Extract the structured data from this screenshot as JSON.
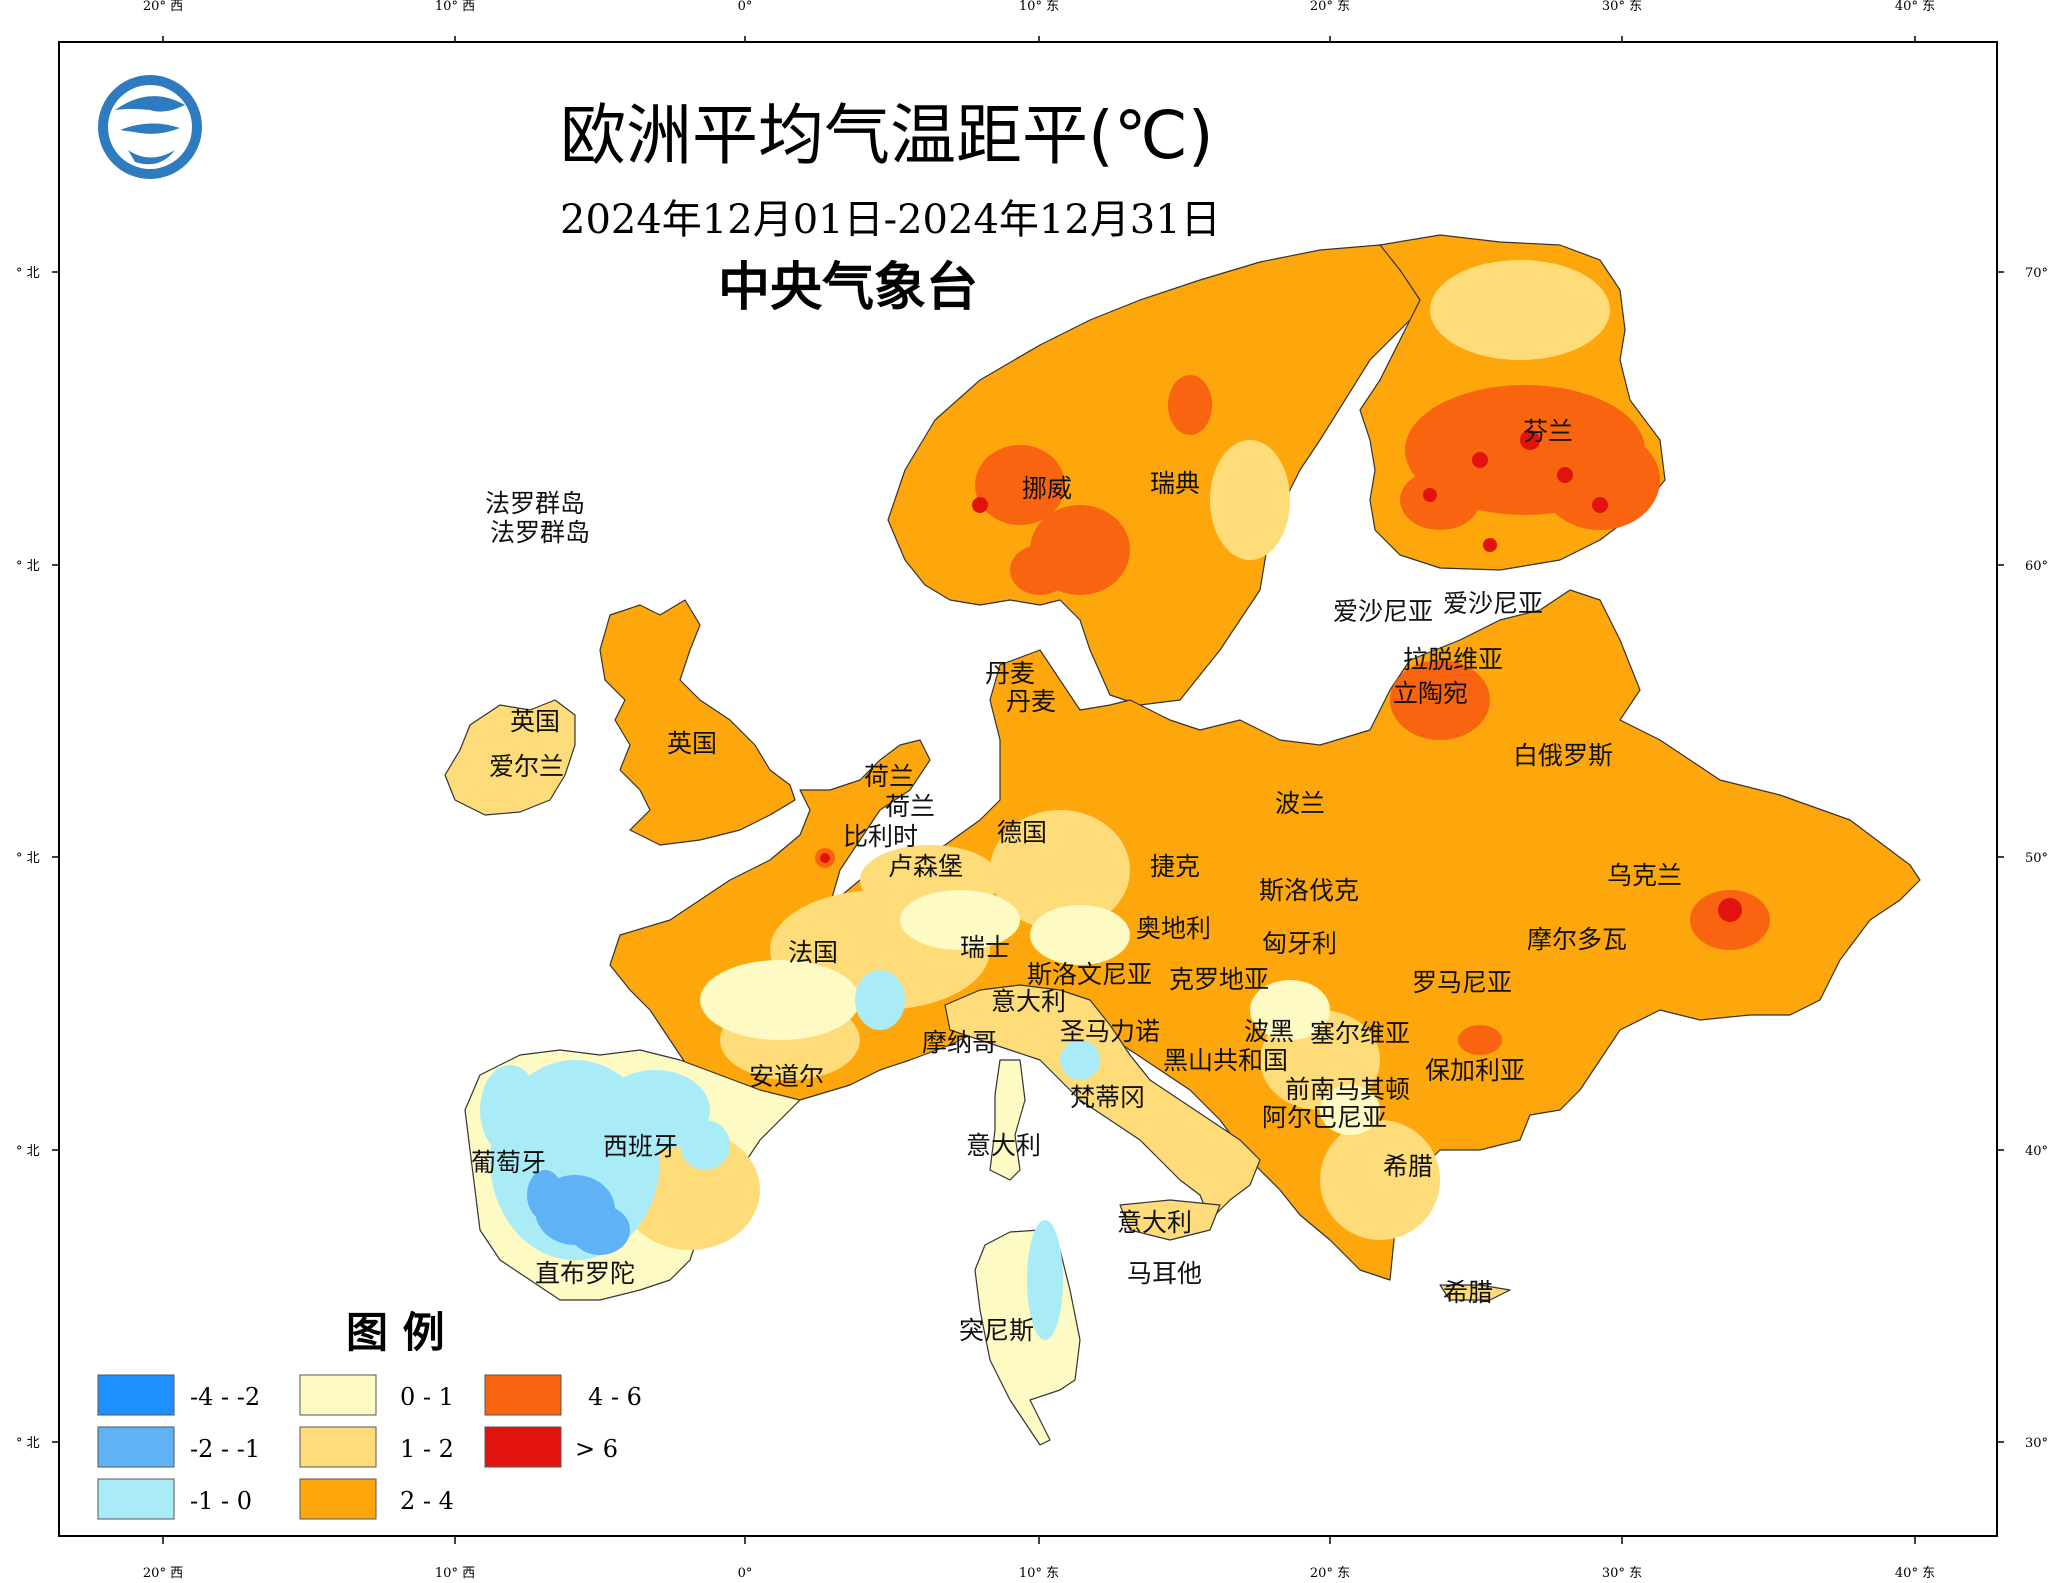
{
  "title": "欧洲平均气温距平(℃)",
  "date_range": "2024年12月01日-2024年12月31日",
  "agency": "中央气象台",
  "axes": {
    "lon_ticks_top": [
      "20° 西",
      "10° 西",
      "0°",
      "10° 东",
      "20° 东",
      "30° 东",
      "40° 东"
    ],
    "lon_ticks_bottom": [
      "20° 西",
      "10° 西",
      "0°",
      "10° 东",
      "20° 东",
      "30° 东",
      "40° 东"
    ],
    "lat_ticks_left": [
      "° 北",
      "° 北",
      "° 北",
      "° 北",
      "° 北"
    ],
    "lat_ticks_right": [
      "70°",
      "60°",
      "50°",
      "40°",
      "30°"
    ]
  },
  "legend": {
    "title": "图 例",
    "items": [
      {
        "range": "-4 - -2",
        "color": "#1e90ff"
      },
      {
        "range": "-2 - -1",
        "color": "#5fb2f5"
      },
      {
        "range": "-1 - 0",
        "color": "#a9ecf8"
      },
      {
        "range": "0 - 1",
        "color": "#fefac4"
      },
      {
        "range": "1 - 2",
        "color": "#fedc7a"
      },
      {
        "range": "2 - 4",
        "color": "#fda70c"
      },
      {
        "range": "4 - 6",
        "color": "#f86410"
      },
      {
        "range": "> 6",
        "color": "#e2120e"
      }
    ]
  },
  "colors": {
    "sea": "#ffffff",
    "anom_neg4_neg2": "#1e90ff",
    "anom_neg2_neg1": "#5fb2f5",
    "anom_neg1_0": "#a9ecf8",
    "anom_0_1": "#fefac4",
    "anom_1_2": "#fedc7a",
    "anom_2_4": "#fda70c",
    "anom_4_6": "#f86410",
    "anom_gt6": "#e2120e"
  },
  "country_labels": [
    "法罗群岛",
    "法罗群岛",
    "挪威",
    "瑞典",
    "芬兰",
    "爱沙尼亚",
    "爱沙尼亚",
    "拉脱维亚",
    "立陶宛",
    "丹麦",
    "丹麦",
    "英国",
    "英国",
    "爱尔兰",
    "荷兰",
    "荷兰",
    "比利时",
    "卢森堡",
    "德国",
    "波兰",
    "白俄罗斯",
    "乌克兰",
    "捷克",
    "斯洛伐克",
    "奥地利",
    "匈牙利",
    "摩尔多瓦",
    "罗马尼亚",
    "瑞士",
    "斯洛文尼亚",
    "克罗地亚",
    "法国",
    "意大利",
    "圣马力诺",
    "波黑",
    "塞尔维亚",
    "摩纳哥",
    "黑山共和国",
    "保加利亚",
    "安道尔",
    "梵蒂冈",
    "前南马其顿",
    "阿尔巴尼亚",
    "葡萄牙",
    "西班牙",
    "意大利",
    "希腊",
    "意大利",
    "直布罗陀",
    "马耳他",
    "希腊",
    "突尼斯"
  ]
}
